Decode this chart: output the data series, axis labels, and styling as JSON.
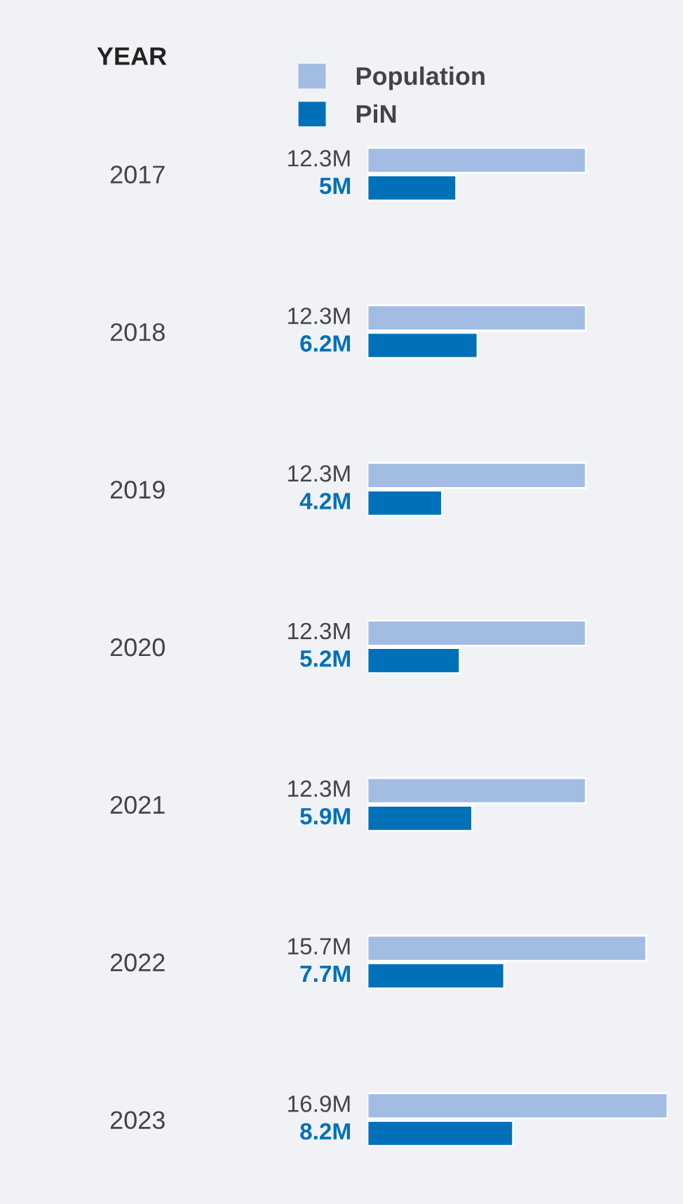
{
  "chart_data": {
    "type": "bar",
    "orientation": "horizontal",
    "ylabel": "YEAR",
    "categories": [
      "2017",
      "2018",
      "2019",
      "2020",
      "2021",
      "2022",
      "2023"
    ],
    "series": [
      {
        "name": "Population",
        "color": "#a3bce3",
        "values": [
          12.3,
          12.3,
          12.3,
          12.3,
          12.3,
          15.7,
          16.9
        ],
        "value_labels": [
          "12.3M",
          "12.3M",
          "12.3M",
          "12.3M",
          "12.3M",
          "15.7M",
          "16.9M"
        ]
      },
      {
        "name": "PiN",
        "color": "#0070b8",
        "values": [
          5,
          6.2,
          4.2,
          5.2,
          5.9,
          7.7,
          8.2
        ],
        "value_labels": [
          "5M",
          "6.2M",
          "4.2M",
          "5.2M",
          "5.9M",
          "7.7M",
          "8.2M"
        ]
      }
    ],
    "legend": "top",
    "grid": false
  }
}
